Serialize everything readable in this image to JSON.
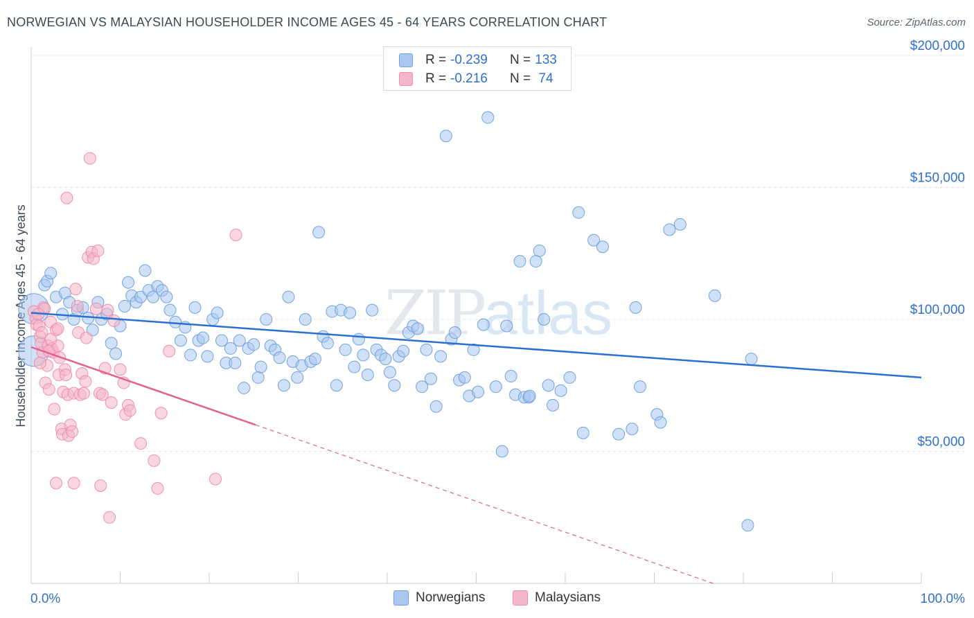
{
  "title": "NORWEGIAN VS MALAYSIAN HOUSEHOLDER INCOME AGES 45 - 64 YEARS CORRELATION CHART",
  "source": "Source: ZipAtlas.com",
  "watermark": {
    "zip": "ZIP",
    "atlas": "atlas"
  },
  "legend": {
    "rows": [
      {
        "r_label": "R =",
        "r_value": "-0.239",
        "n_label": "N =",
        "n_value": "133",
        "color": "#a9c7ef"
      },
      {
        "r_label": "R =",
        "r_value": "-0.216",
        "n_label": "N =",
        "n_value": "74",
        "color": "#f4b6c9"
      }
    ]
  },
  "bottom_legend": {
    "items": [
      {
        "label": "Norwegians",
        "color": "#a9c7ef"
      },
      {
        "label": "Malaysians",
        "color": "#f4b6c9"
      }
    ]
  },
  "chart_data": {
    "type": "scatter",
    "title": "NORWEGIAN VS MALAYSIAN HOUSEHOLDER INCOME AGES 45 - 64 YEARS CORRELATION CHART",
    "xlabel": "",
    "ylabel": "Householder Income Ages 45 - 64 years",
    "xlim": [
      0,
      100
    ],
    "ylim": [
      0,
      200000
    ],
    "x_tick_labels": [
      "0.0%",
      "100.0%"
    ],
    "y_ticks": [
      50000,
      100000,
      150000,
      200000
    ],
    "y_tick_labels": [
      "$50,000",
      "$100,000",
      "$150,000",
      "$200,000"
    ],
    "grid": true,
    "legend_position": "top-center",
    "series": [
      {
        "name": "Norwegians",
        "color": "#6fa3e0",
        "fill": "#a9c7ef",
        "trend": {
          "x0": 0,
          "y0": 102500,
          "x1": 100,
          "y1": 78000,
          "solid_to": 100
        },
        "points": [
          [
            0.3,
            104000
          ],
          [
            0.3,
            88000
          ],
          [
            1.5,
            113000
          ],
          [
            1.8,
            114500
          ],
          [
            2.2,
            117500
          ],
          [
            2.8,
            108500
          ],
          [
            3.5,
            102000
          ],
          [
            3.8,
            110000
          ],
          [
            4.3,
            106500
          ],
          [
            4.8,
            100000
          ],
          [
            5.2,
            103500
          ],
          [
            5.8,
            104500
          ],
          [
            6.4,
            100500
          ],
          [
            6.9,
            96000
          ],
          [
            7.5,
            106500
          ],
          [
            7.9,
            100000
          ],
          [
            8.5,
            102000
          ],
          [
            9.0,
            91000
          ],
          [
            9.5,
            87000
          ],
          [
            10.0,
            97500
          ],
          [
            10.5,
            105000
          ],
          [
            10.9,
            114000
          ],
          [
            11.3,
            109000
          ],
          [
            11.8,
            106500
          ],
          [
            12.3,
            108500
          ],
          [
            12.8,
            118500
          ],
          [
            13.2,
            111000
          ],
          [
            13.7,
            108500
          ],
          [
            14.2,
            112500
          ],
          [
            14.7,
            111000
          ],
          [
            15.2,
            108500
          ],
          [
            15.6,
            103500
          ],
          [
            16.2,
            99000
          ],
          [
            16.8,
            92000
          ],
          [
            17.3,
            97000
          ],
          [
            17.9,
            86500
          ],
          [
            18.4,
            104500
          ],
          [
            18.8,
            92000
          ],
          [
            19.3,
            93000
          ],
          [
            19.8,
            86000
          ],
          [
            20.4,
            100000
          ],
          [
            20.9,
            102500
          ],
          [
            21.4,
            92000
          ],
          [
            21.9,
            83500
          ],
          [
            22.4,
            89000
          ],
          [
            22.9,
            83500
          ],
          [
            23.4,
            92000
          ],
          [
            23.9,
            74000
          ],
          [
            24.4,
            89000
          ],
          [
            25.0,
            90500
          ],
          [
            25.5,
            78000
          ],
          [
            25.8,
            82000
          ],
          [
            26.4,
            100000
          ],
          [
            26.9,
            90000
          ],
          [
            27.4,
            88500
          ],
          [
            27.9,
            85500
          ],
          [
            28.4,
            75000
          ],
          [
            28.9,
            108500
          ],
          [
            29.4,
            84000
          ],
          [
            29.9,
            78000
          ],
          [
            30.4,
            82500
          ],
          [
            30.8,
            100000
          ],
          [
            31.4,
            84000
          ],
          [
            31.9,
            85000
          ],
          [
            32.3,
            133000
          ],
          [
            32.8,
            93500
          ],
          [
            33.3,
            91000
          ],
          [
            33.8,
            103000
          ],
          [
            34.3,
            75000
          ],
          [
            34.8,
            103500
          ],
          [
            35.3,
            88500
          ],
          [
            35.8,
            102500
          ],
          [
            36.3,
            82000
          ],
          [
            36.8,
            92500
          ],
          [
            37.3,
            86500
          ],
          [
            37.8,
            79000
          ],
          [
            38.3,
            103500
          ],
          [
            38.8,
            88500
          ],
          [
            39.3,
            86500
          ],
          [
            39.8,
            85000
          ],
          [
            40.3,
            80000
          ],
          [
            40.8,
            75000
          ],
          [
            41.3,
            86000
          ],
          [
            41.8,
            88000
          ],
          [
            42.4,
            95000
          ],
          [
            42.9,
            97500
          ],
          [
            43.4,
            96500
          ],
          [
            43.9,
            74500
          ],
          [
            44.4,
            88500
          ],
          [
            44.9,
            77500
          ],
          [
            45.5,
            67000
          ],
          [
            46.0,
            86000
          ],
          [
            46.6,
            169500
          ],
          [
            47.2,
            92500
          ],
          [
            47.6,
            95000
          ],
          [
            48.1,
            77000
          ],
          [
            48.7,
            78000
          ],
          [
            49.2,
            71000
          ],
          [
            49.7,
            88500
          ],
          [
            50.2,
            72500
          ],
          [
            50.8,
            98000
          ],
          [
            51.3,
            176500
          ],
          [
            52.2,
            74500
          ],
          [
            52.9,
            50000
          ],
          [
            53.4,
            97500
          ],
          [
            53.9,
            78500
          ],
          [
            54.4,
            71500
          ],
          [
            54.9,
            122000
          ],
          [
            55.4,
            70500
          ],
          [
            55.9,
            70500
          ],
          [
            56.7,
            122000
          ],
          [
            57.1,
            126000
          ],
          [
            57.6,
            100000
          ],
          [
            58.1,
            75000
          ],
          [
            58.6,
            67500
          ],
          [
            59.5,
            73000
          ],
          [
            60.5,
            78000
          ],
          [
            61.5,
            140500
          ],
          [
            62.0,
            57000
          ],
          [
            63.2,
            130000
          ],
          [
            64.2,
            127500
          ],
          [
            66.0,
            56500
          ],
          [
            67.5,
            58500
          ],
          [
            67.9,
            104500
          ],
          [
            68.4,
            74500
          ],
          [
            70.3,
            64000
          ],
          [
            70.7,
            61000
          ],
          [
            71.7,
            134000
          ],
          [
            72.9,
            136000
          ],
          [
            76.8,
            109000
          ],
          [
            80.5,
            22000
          ],
          [
            80.9,
            85000
          ],
          [
            56.0,
            71000
          ]
        ]
      },
      {
        "name": "Malaysians",
        "color": "#ef8fae",
        "fill": "#f4b6c9",
        "trend": {
          "x0": 0,
          "y0": 89500,
          "x1": 76.6,
          "y1": 0,
          "solid_to": 25.2
        },
        "points": [
          [
            0.3,
            103000
          ],
          [
            0.5,
            100500
          ],
          [
            0.6,
            98000
          ],
          [
            0.9,
            97500
          ],
          [
            1.0,
            93500
          ],
          [
            1.1,
            91000
          ],
          [
            1.2,
            95000
          ],
          [
            1.3,
            87500
          ],
          [
            1.4,
            104500
          ],
          [
            1.6,
            76000
          ],
          [
            1.8,
            82500
          ],
          [
            1.9,
            90000
          ],
          [
            2.0,
            73500
          ],
          [
            2.2,
            99000
          ],
          [
            2.3,
            89000
          ],
          [
            2.5,
            87500
          ],
          [
            2.6,
            66000
          ],
          [
            2.8,
            96000
          ],
          [
            3.0,
            96500
          ],
          [
            3.1,
            79000
          ],
          [
            3.2,
            85500
          ],
          [
            3.4,
            58500
          ],
          [
            3.5,
            56500
          ],
          [
            3.6,
            72500
          ],
          [
            3.8,
            81000
          ],
          [
            3.9,
            79000
          ],
          [
            4.1,
            71500
          ],
          [
            4.2,
            56000
          ],
          [
            4.4,
            60000
          ],
          [
            4.6,
            57500
          ],
          [
            4.8,
            72000
          ],
          [
            5.0,
            111500
          ],
          [
            5.2,
            105000
          ],
          [
            5.3,
            95000
          ],
          [
            5.5,
            71500
          ],
          [
            5.7,
            79500
          ],
          [
            5.9,
            72000
          ],
          [
            6.1,
            76500
          ],
          [
            6.2,
            93000
          ],
          [
            6.4,
            123500
          ],
          [
            6.6,
            161000
          ],
          [
            6.8,
            125500
          ],
          [
            7.0,
            123000
          ],
          [
            7.3,
            104000
          ],
          [
            7.5,
            126000
          ],
          [
            7.7,
            72000
          ],
          [
            8.0,
            71500
          ],
          [
            8.3,
            81500
          ],
          [
            8.6,
            103500
          ],
          [
            9.0,
            68500
          ],
          [
            9.3,
            99500
          ],
          [
            10.0,
            81000
          ],
          [
            10.4,
            76000
          ],
          [
            10.6,
            64000
          ],
          [
            10.9,
            67500
          ],
          [
            11.1,
            65500
          ],
          [
            12.3,
            53000
          ],
          [
            13.8,
            46500
          ],
          [
            14.2,
            36000
          ],
          [
            14.6,
            64500
          ],
          [
            15.5,
            88000
          ],
          [
            20.7,
            39500
          ],
          [
            23.0,
            132000
          ],
          [
            1.5,
            104000
          ],
          [
            2.0,
            88000
          ],
          [
            3.0,
            90000
          ],
          [
            1.0,
            83500
          ],
          [
            4.0,
            146000
          ],
          [
            2.8,
            38000
          ],
          [
            4.8,
            38000
          ],
          [
            7.8,
            37000
          ],
          [
            8.8,
            25000
          ],
          [
            0.8,
            102000
          ],
          [
            2.2,
            92500
          ]
        ]
      }
    ]
  }
}
